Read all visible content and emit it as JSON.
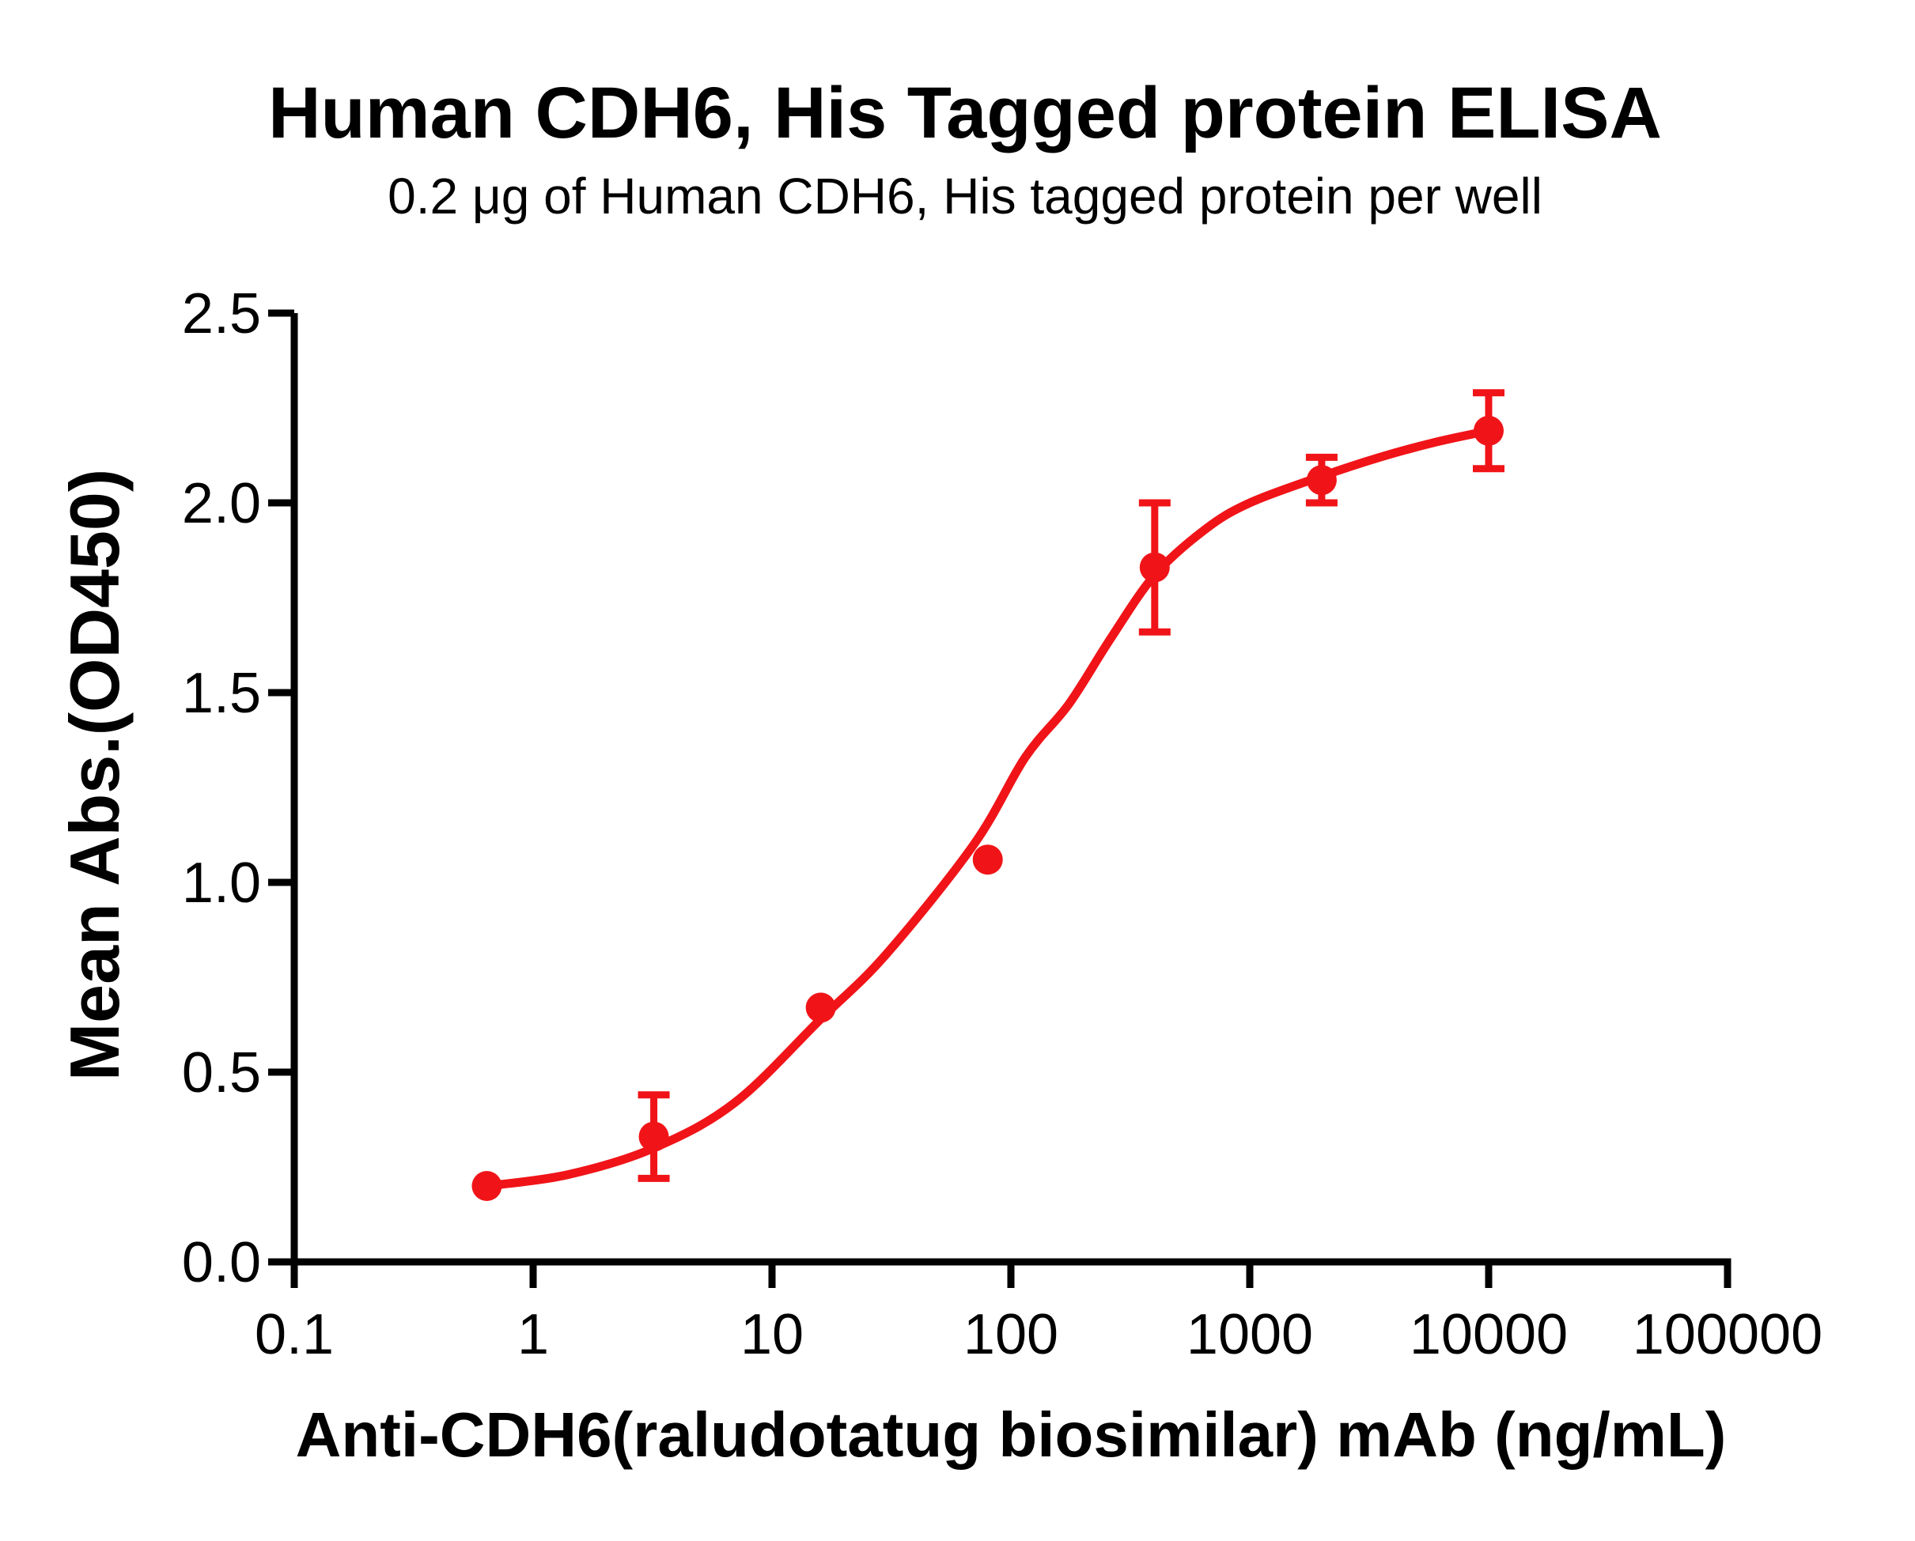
{
  "chart_data": {
    "type": "scatter",
    "title": "Human CDH6, His Tagged protein ELISA",
    "subtitle": "0.2 μg of Human CDH6, His tagged protein per well",
    "xlabel": "Anti-CDH6(raludotatug biosimilar) mAb (ng/mL)",
    "ylabel": "Mean Abs.(OD450)",
    "x_scale": "log10",
    "xlim": [
      0.1,
      100000
    ],
    "ylim": [
      0.0,
      2.5
    ],
    "x_tick_values": [
      0.1,
      1,
      10,
      100,
      1000,
      10000,
      100000
    ],
    "x_tick_labels": [
      "0.1",
      "1",
      "10",
      "100",
      "1000",
      "10000",
      "100000"
    ],
    "y_tick_values": [
      0.0,
      0.5,
      1.0,
      1.5,
      2.0,
      2.5
    ],
    "y_tick_labels": [
      "0.0",
      "0.5",
      "1.0",
      "1.5",
      "2.0",
      "2.5"
    ],
    "grid": false,
    "legend": "none",
    "series": [
      {
        "name": "Anti-CDH6(raludotatug biosimilar) mAb",
        "marker": "circle",
        "line": "4PL sigmoidal fit",
        "points": [
          {
            "x": 0.64,
            "y": 0.2,
            "err": 0
          },
          {
            "x": 3.2,
            "y": 0.33,
            "err": 0.11
          },
          {
            "x": 16,
            "y": 0.67,
            "err": 0
          },
          {
            "x": 80,
            "y": 1.06,
            "err": 0
          },
          {
            "x": 400,
            "y": 1.83,
            "err": 0.17
          },
          {
            "x": 2000,
            "y": 2.06,
            "err": 0.06
          },
          {
            "x": 10000,
            "y": 2.19,
            "err": 0.1
          }
        ],
        "fit_curve": [
          [
            0.64,
            0.2
          ],
          [
            1.4,
            0.23
          ],
          [
            3.2,
            0.3
          ],
          [
            7,
            0.42
          ],
          [
            16,
            0.64
          ],
          [
            30,
            0.81
          ],
          [
            70,
            1.1
          ],
          [
            115,
            1.33
          ],
          [
            175,
            1.47
          ],
          [
            260,
            1.64
          ],
          [
            400,
            1.81
          ],
          [
            650,
            1.93
          ],
          [
            1000,
            2.0
          ],
          [
            2000,
            2.07
          ],
          [
            3500,
            2.12
          ],
          [
            6000,
            2.16
          ],
          [
            10000,
            2.19
          ]
        ]
      }
    ]
  },
  "colors": {
    "background": "#ffffff",
    "axis": "#000000",
    "text": "#000000",
    "series_red": "#F01418"
  }
}
